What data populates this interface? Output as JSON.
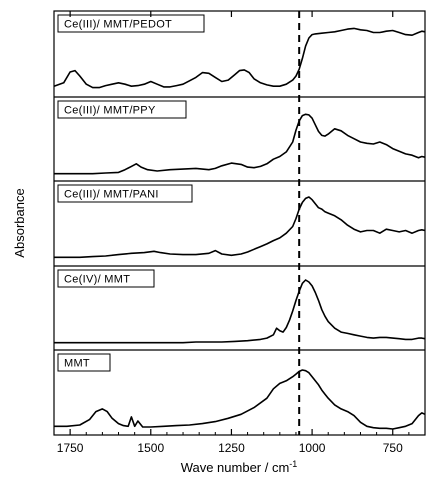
{
  "chart_data": {
    "type": "line",
    "title": "",
    "xlabel": "Wave number / cm",
    "xlabel_superscript": "-1",
    "ylabel": "Absorbance",
    "xlim": [
      1800,
      650
    ],
    "x_reversed": true,
    "x_ticks": [
      1750,
      1500,
      1250,
      1000,
      750
    ],
    "reference_line_x": 1040,
    "series": [
      {
        "name": "Ce(III)/ MMT/PEDOT",
        "x": [
          1800,
          1770,
          1750,
          1735,
          1720,
          1700,
          1680,
          1660,
          1640,
          1620,
          1600,
          1580,
          1560,
          1540,
          1520,
          1500,
          1480,
          1460,
          1440,
          1420,
          1400,
          1380,
          1360,
          1340,
          1320,
          1300,
          1280,
          1260,
          1240,
          1225,
          1210,
          1195,
          1180,
          1160,
          1140,
          1120,
          1100,
          1080,
          1060,
          1050,
          1040,
          1030,
          1020,
          1010,
          1000,
          990,
          970,
          950,
          930,
          910,
          890,
          870,
          850,
          830,
          810,
          790,
          770,
          750,
          730,
          710,
          690,
          670,
          660,
          650
        ],
        "y": [
          0.07,
          0.12,
          0.28,
          0.3,
          0.22,
          0.1,
          0.05,
          0.05,
          0.08,
          0.1,
          0.12,
          0.1,
          0.07,
          0.08,
          0.1,
          0.14,
          0.1,
          0.06,
          0.06,
          0.08,
          0.1,
          0.15,
          0.2,
          0.27,
          0.26,
          0.2,
          0.14,
          0.16,
          0.24,
          0.3,
          0.31,
          0.27,
          0.18,
          0.12,
          0.09,
          0.07,
          0.07,
          0.1,
          0.16,
          0.22,
          0.32,
          0.48,
          0.66,
          0.78,
          0.83,
          0.84,
          0.85,
          0.86,
          0.87,
          0.89,
          0.91,
          0.92,
          0.9,
          0.89,
          0.86,
          0.86,
          0.88,
          0.89,
          0.86,
          0.83,
          0.82,
          0.86,
          0.88,
          0.87
        ]
      },
      {
        "name": "Ce(III)/ MMT/PPY",
        "x": [
          1800,
          1760,
          1720,
          1680,
          1640,
          1600,
          1580,
          1560,
          1545,
          1530,
          1510,
          1480,
          1440,
          1400,
          1360,
          1320,
          1300,
          1280,
          1250,
          1220,
          1200,
          1180,
          1160,
          1140,
          1120,
          1100,
          1080,
          1060,
          1050,
          1040,
          1030,
          1020,
          1010,
          1000,
          990,
          980,
          970,
          960,
          950,
          930,
          910,
          890,
          870,
          850,
          830,
          810,
          790,
          770,
          750,
          730,
          710,
          690,
          670,
          660,
          650
        ],
        "y": [
          0.02,
          0.02,
          0.02,
          0.02,
          0.03,
          0.04,
          0.08,
          0.13,
          0.17,
          0.12,
          0.08,
          0.06,
          0.08,
          0.09,
          0.1,
          0.08,
          0.1,
          0.14,
          0.18,
          0.16,
          0.12,
          0.11,
          0.13,
          0.17,
          0.24,
          0.28,
          0.35,
          0.5,
          0.68,
          0.82,
          0.9,
          0.92,
          0.91,
          0.86,
          0.76,
          0.66,
          0.6,
          0.59,
          0.62,
          0.7,
          0.67,
          0.6,
          0.55,
          0.5,
          0.48,
          0.47,
          0.5,
          0.46,
          0.4,
          0.36,
          0.32,
          0.3,
          0.26,
          0.28,
          0.27
        ]
      },
      {
        "name": "Ce(III)/ MMT/PANI",
        "x": [
          1800,
          1760,
          1720,
          1680,
          1640,
          1600,
          1560,
          1520,
          1490,
          1470,
          1440,
          1400,
          1360,
          1320,
          1300,
          1280,
          1250,
          1220,
          1200,
          1180,
          1160,
          1140,
          1120,
          1100,
          1080,
          1060,
          1050,
          1040,
          1030,
          1020,
          1010,
          1000,
          990,
          980,
          970,
          960,
          950,
          930,
          910,
          890,
          870,
          850,
          830,
          810,
          790,
          770,
          750,
          730,
          710,
          690,
          670,
          660,
          650
        ],
        "y": [
          0.04,
          0.04,
          0.04,
          0.05,
          0.06,
          0.08,
          0.1,
          0.11,
          0.13,
          0.11,
          0.09,
          0.08,
          0.08,
          0.1,
          0.14,
          0.09,
          0.07,
          0.09,
          0.12,
          0.16,
          0.2,
          0.24,
          0.29,
          0.33,
          0.4,
          0.5,
          0.62,
          0.76,
          0.86,
          0.92,
          0.94,
          0.9,
          0.84,
          0.78,
          0.76,
          0.72,
          0.7,
          0.66,
          0.6,
          0.52,
          0.46,
          0.42,
          0.44,
          0.44,
          0.4,
          0.46,
          0.44,
          0.42,
          0.44,
          0.4,
          0.44,
          0.45,
          0.44
        ]
      },
      {
        "name": "Ce(IV)/ MMT",
        "x": [
          1800,
          1760,
          1720,
          1680,
          1640,
          1600,
          1560,
          1520,
          1480,
          1440,
          1400,
          1360,
          1320,
          1280,
          1240,
          1200,
          1160,
          1140,
          1120,
          1110,
          1100,
          1090,
          1080,
          1070,
          1060,
          1050,
          1040,
          1030,
          1020,
          1010,
          1000,
          990,
          980,
          970,
          960,
          950,
          930,
          910,
          890,
          870,
          850,
          830,
          810,
          790,
          770,
          750,
          730,
          710,
          690,
          670,
          660,
          650
        ],
        "y": [
          0.02,
          0.02,
          0.02,
          0.02,
          0.02,
          0.02,
          0.02,
          0.02,
          0.02,
          0.02,
          0.02,
          0.03,
          0.03,
          0.03,
          0.04,
          0.05,
          0.07,
          0.09,
          0.14,
          0.24,
          0.2,
          0.18,
          0.25,
          0.36,
          0.5,
          0.66,
          0.8,
          0.92,
          0.97,
          0.94,
          0.88,
          0.78,
          0.66,
          0.52,
          0.42,
          0.34,
          0.24,
          0.18,
          0.16,
          0.14,
          0.12,
          0.1,
          0.09,
          0.1,
          0.1,
          0.09,
          0.08,
          0.07,
          0.07,
          0.09,
          0.09,
          0.08
        ]
      },
      {
        "name": "MMT",
        "x": [
          1800,
          1760,
          1720,
          1690,
          1670,
          1650,
          1635,
          1620,
          1600,
          1585,
          1570,
          1560,
          1550,
          1540,
          1525,
          1500,
          1460,
          1420,
          1380,
          1340,
          1300,
          1260,
          1220,
          1180,
          1140,
          1120,
          1100,
          1080,
          1060,
          1050,
          1040,
          1030,
          1020,
          1010,
          1000,
          990,
          980,
          970,
          960,
          950,
          930,
          910,
          890,
          870,
          850,
          830,
          810,
          790,
          770,
          750,
          730,
          710,
          690,
          680,
          670,
          660,
          650
        ],
        "y": [
          0.04,
          0.04,
          0.06,
          0.14,
          0.26,
          0.3,
          0.26,
          0.16,
          0.08,
          0.05,
          0.04,
          0.18,
          0.04,
          0.12,
          0.03,
          0.03,
          0.04,
          0.05,
          0.06,
          0.08,
          0.11,
          0.16,
          0.22,
          0.32,
          0.46,
          0.6,
          0.68,
          0.72,
          0.78,
          0.82,
          0.86,
          0.88,
          0.87,
          0.84,
          0.78,
          0.72,
          0.66,
          0.58,
          0.52,
          0.46,
          0.36,
          0.3,
          0.26,
          0.2,
          0.1,
          0.04,
          0.02,
          0.01,
          0.01,
          0.0,
          0.02,
          0.04,
          0.08,
          0.14,
          0.2,
          0.24,
          0.22
        ]
      }
    ]
  }
}
